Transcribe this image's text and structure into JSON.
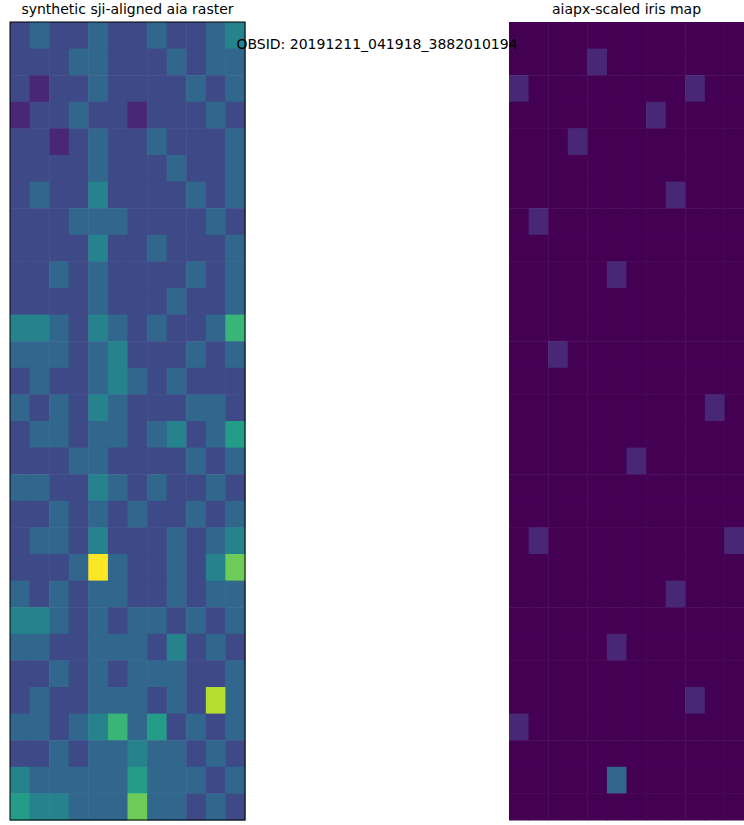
{
  "title": "OBSID: 20191211_041918_3882010194",
  "chart_data": [
    {
      "type": "heatmap",
      "title": "synthetic sji-aligned aia raster",
      "tick_labels": false,
      "zlim": [
        0,
        9
      ],
      "cells": [
        [
          2,
          3,
          2,
          2,
          3,
          2,
          2,
          3,
          2,
          2,
          3,
          4
        ],
        [
          2,
          2,
          2,
          3,
          3,
          2,
          2,
          2,
          3,
          2,
          3,
          3
        ],
        [
          2,
          1,
          2,
          2,
          3,
          2,
          2,
          2,
          2,
          3,
          2,
          3
        ],
        [
          1,
          2,
          2,
          3,
          2,
          2,
          1,
          2,
          2,
          2,
          3,
          2
        ],
        [
          2,
          2,
          1,
          2,
          3,
          2,
          2,
          3,
          2,
          2,
          2,
          3
        ],
        [
          2,
          2,
          2,
          2,
          3,
          2,
          2,
          2,
          3,
          2,
          2,
          3
        ],
        [
          2,
          3,
          2,
          2,
          4,
          2,
          2,
          2,
          2,
          3,
          2,
          3
        ],
        [
          2,
          2,
          2,
          3,
          3,
          3,
          2,
          2,
          2,
          2,
          3,
          2
        ],
        [
          2,
          2,
          2,
          2,
          4,
          2,
          2,
          3,
          2,
          2,
          2,
          3
        ],
        [
          2,
          2,
          3,
          2,
          3,
          2,
          2,
          2,
          2,
          3,
          2,
          3
        ],
        [
          2,
          2,
          2,
          2,
          3,
          2,
          2,
          2,
          3,
          2,
          2,
          3
        ],
        [
          4,
          4,
          3,
          2,
          4,
          3,
          2,
          3,
          2,
          2,
          3,
          6
        ],
        [
          3,
          3,
          3,
          2,
          3,
          4,
          2,
          2,
          2,
          3,
          2,
          3
        ],
        [
          2,
          3,
          2,
          2,
          3,
          4,
          3,
          2,
          3,
          2,
          2,
          2
        ],
        [
          3,
          2,
          3,
          2,
          4,
          3,
          2,
          2,
          2,
          3,
          3,
          2
        ],
        [
          2,
          3,
          3,
          2,
          3,
          3,
          2,
          3,
          4,
          2,
          3,
          5
        ],
        [
          2,
          2,
          2,
          3,
          3,
          2,
          2,
          2,
          2,
          3,
          2,
          3
        ],
        [
          3,
          3,
          2,
          2,
          4,
          3,
          2,
          3,
          2,
          2,
          3,
          2
        ],
        [
          2,
          2,
          3,
          2,
          3,
          2,
          3,
          2,
          2,
          3,
          2,
          3
        ],
        [
          2,
          3,
          3,
          2,
          4,
          2,
          2,
          2,
          3,
          2,
          3,
          4
        ],
        [
          2,
          2,
          2,
          3,
          9,
          3,
          2,
          2,
          3,
          2,
          4,
          7
        ],
        [
          3,
          2,
          3,
          2,
          3,
          3,
          2,
          2,
          3,
          2,
          3,
          3
        ],
        [
          4,
          4,
          3,
          2,
          3,
          2,
          3,
          3,
          2,
          3,
          2,
          3
        ],
        [
          3,
          3,
          2,
          2,
          3,
          3,
          3,
          2,
          4,
          2,
          3,
          2
        ],
        [
          2,
          2,
          3,
          2,
          3,
          2,
          3,
          3,
          3,
          2,
          2,
          3
        ],
        [
          2,
          3,
          2,
          2,
          3,
          3,
          3,
          2,
          3,
          2,
          8,
          3
        ],
        [
          3,
          3,
          2,
          3,
          4,
          6,
          3,
          5,
          2,
          3,
          2,
          3
        ],
        [
          2,
          2,
          3,
          2,
          3,
          3,
          4,
          3,
          3,
          2,
          3,
          2
        ],
        [
          4,
          3,
          3,
          3,
          3,
          3,
          5,
          3,
          3,
          3,
          2,
          3
        ],
        [
          5,
          4,
          4,
          3,
          3,
          3,
          7,
          3,
          3,
          2,
          3,
          2
        ]
      ]
    },
    {
      "type": "heatmap",
      "title": "aiapx-scaled iris map",
      "tick_labels": false,
      "zlim": [
        0,
        9
      ],
      "cells": [
        [
          0,
          0,
          0,
          0,
          0,
          0,
          0,
          0,
          0,
          0,
          0,
          0
        ],
        [
          0,
          0,
          0,
          0,
          1,
          0,
          0,
          0,
          0,
          0,
          0,
          0
        ],
        [
          1,
          0,
          0,
          0,
          0,
          0,
          0,
          0,
          0,
          1,
          0,
          0
        ],
        [
          0,
          0,
          0,
          0,
          0,
          0,
          0,
          1,
          0,
          0,
          0,
          0
        ],
        [
          0,
          0,
          0,
          1,
          0,
          0,
          0,
          0,
          0,
          0,
          0,
          0
        ],
        [
          0,
          0,
          0,
          0,
          0,
          0,
          0,
          0,
          0,
          0,
          0,
          0
        ],
        [
          0,
          0,
          0,
          0,
          0,
          0,
          0,
          0,
          1,
          0,
          0,
          0
        ],
        [
          0,
          1,
          0,
          0,
          0,
          0,
          0,
          0,
          0,
          0,
          0,
          0
        ],
        [
          0,
          0,
          0,
          0,
          0,
          0,
          0,
          0,
          0,
          0,
          0,
          0
        ],
        [
          0,
          0,
          0,
          0,
          0,
          1,
          0,
          0,
          0,
          0,
          0,
          0
        ],
        [
          0,
          0,
          0,
          0,
          0,
          0,
          0,
          0,
          0,
          0,
          0,
          0
        ],
        [
          0,
          0,
          0,
          0,
          0,
          0,
          0,
          0,
          0,
          0,
          0,
          0
        ],
        [
          0,
          0,
          1,
          0,
          0,
          0,
          0,
          0,
          0,
          0,
          0,
          0
        ],
        [
          0,
          0,
          0,
          0,
          0,
          0,
          0,
          0,
          0,
          0,
          0,
          0
        ],
        [
          0,
          0,
          0,
          0,
          0,
          0,
          0,
          0,
          0,
          0,
          1,
          0
        ],
        [
          0,
          0,
          0,
          0,
          0,
          0,
          0,
          0,
          0,
          0,
          0,
          0
        ],
        [
          0,
          0,
          0,
          0,
          0,
          0,
          1,
          0,
          0,
          0,
          0,
          0
        ],
        [
          0,
          0,
          0,
          0,
          0,
          0,
          0,
          0,
          0,
          0,
          0,
          0
        ],
        [
          0,
          0,
          0,
          0,
          0,
          0,
          0,
          0,
          0,
          0,
          0,
          0
        ],
        [
          0,
          1,
          0,
          0,
          0,
          0,
          0,
          0,
          0,
          0,
          0,
          1
        ],
        [
          0,
          0,
          0,
          0,
          0,
          0,
          0,
          0,
          0,
          0,
          0,
          0
        ],
        [
          0,
          0,
          0,
          0,
          0,
          0,
          0,
          0,
          1,
          0,
          0,
          0
        ],
        [
          0,
          0,
          0,
          0,
          0,
          0,
          0,
          0,
          0,
          0,
          0,
          0
        ],
        [
          0,
          0,
          0,
          0,
          0,
          1,
          0,
          0,
          0,
          0,
          0,
          0
        ],
        [
          0,
          0,
          0,
          0,
          0,
          0,
          0,
          0,
          0,
          0,
          0,
          0
        ],
        [
          0,
          0,
          0,
          0,
          0,
          0,
          0,
          0,
          0,
          1,
          0,
          0
        ],
        [
          1,
          0,
          0,
          0,
          0,
          0,
          0,
          0,
          0,
          0,
          0,
          0
        ],
        [
          0,
          0,
          0,
          0,
          0,
          0,
          0,
          0,
          0,
          0,
          0,
          0
        ],
        [
          0,
          0,
          0,
          0,
          0,
          3,
          0,
          0,
          0,
          0,
          0,
          0
        ],
        [
          0,
          0,
          0,
          0,
          0,
          0,
          0,
          0,
          0,
          0,
          0,
          0
        ]
      ]
    }
  ]
}
